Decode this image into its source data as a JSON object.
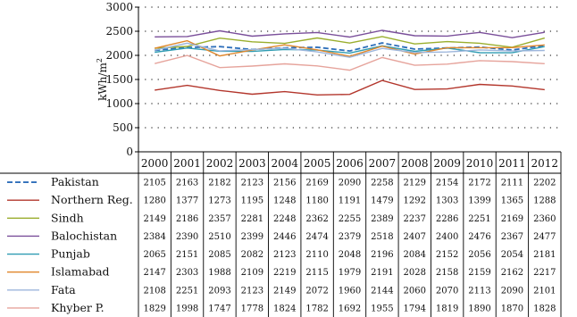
{
  "chart_data": {
    "type": "line",
    "ylabel": "kWh/m²",
    "ylabel_main": "kWh/m",
    "ylabel_sup": "2",
    "ylim": [
      0,
      3000
    ],
    "yticks": [
      "0",
      "500",
      "1000",
      "1500",
      "2000",
      "2500",
      "3000"
    ],
    "grid": "dotted horizontal",
    "legend": "table below chart",
    "x": [
      "2000",
      "2001",
      "2002",
      "2003",
      "2004",
      "2005",
      "2006",
      "2007",
      "2008",
      "2009",
      "2010",
      "2011",
      "2012"
    ],
    "series": [
      {
        "name": "Pakistan",
        "color": "#2e6fba",
        "dash": "dashed",
        "values": [
          2105,
          2163,
          2182,
          2123,
          2156,
          2169,
          2090,
          2258,
          2129,
          2154,
          2172,
          2111,
          2202
        ]
      },
      {
        "name": "Northern Reg.",
        "color": "#b3362c",
        "dash": "solid",
        "values": [
          1280,
          1377,
          1273,
          1195,
          1248,
          1180,
          1191,
          1479,
          1292,
          1303,
          1399,
          1365,
          1288
        ]
      },
      {
        "name": "Sindh",
        "color": "#9aae2e",
        "dash": "solid",
        "values": [
          2149,
          2186,
          2357,
          2281,
          2248,
          2362,
          2255,
          2389,
          2237,
          2286,
          2251,
          2169,
          2360
        ]
      },
      {
        "name": "Balochistan",
        "color": "#7a4f9a",
        "dash": "solid",
        "values": [
          2384,
          2390,
          2510,
          2399,
          2446,
          2474,
          2379,
          2518,
          2407,
          2400,
          2476,
          2367,
          2477
        ]
      },
      {
        "name": "Punjab",
        "color": "#2f9cb2",
        "dash": "solid",
        "values": [
          2065,
          2151,
          2085,
          2082,
          2123,
          2110,
          2048,
          2196,
          2084,
          2152,
          2056,
          2054,
          2181
        ]
      },
      {
        "name": "Islamabad",
        "color": "#e0872c",
        "dash": "solid",
        "values": [
          2147,
          2303,
          1988,
          2109,
          2219,
          2115,
          1979,
          2191,
          2028,
          2158,
          2159,
          2162,
          2217
        ]
      },
      {
        "name": "Fata",
        "color": "#9db6dc",
        "dash": "solid",
        "values": [
          2108,
          2251,
          2093,
          2123,
          2149,
          2072,
          1960,
          2144,
          2060,
          2070,
          2113,
          2090,
          2101
        ]
      },
      {
        "name": "Khyber P.",
        "color": "#e6a49c",
        "dash": "solid",
        "values": [
          1829,
          1998,
          1747,
          1778,
          1824,
          1782,
          1692,
          1955,
          1794,
          1819,
          1890,
          1870,
          1828
        ]
      }
    ]
  }
}
